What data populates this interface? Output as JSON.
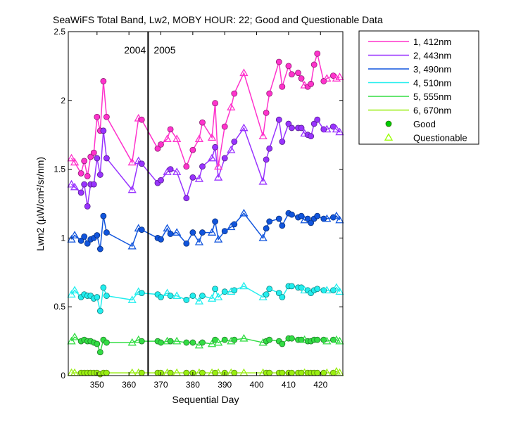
{
  "chart_data": {
    "type": "line",
    "title": "SeaWiFS Total Band, Lw2, MOBY HOUR: 22;  Good and Questionable Data",
    "xlabel": "Sequential Day",
    "ylabel": "Lwn2 (µW/cm²/sr/nm)",
    "xlim": [
      341,
      427
    ],
    "ylim": [
      0,
      2.5
    ],
    "xticks": [
      350,
      360,
      370,
      380,
      390,
      400,
      410,
      420
    ],
    "yticks": [
      0,
      0.5,
      1,
      1.5,
      2,
      2.5
    ],
    "grid": false,
    "legend_position": "outside-right",
    "annotations": [
      {
        "text": "2004",
        "x": 365
      },
      {
        "text": "2005",
        "x": 367
      }
    ],
    "vline_x": 366,
    "x": [
      342,
      343,
      345,
      346,
      347,
      348,
      349,
      350,
      351,
      352,
      353,
      361,
      363,
      364,
      369,
      370,
      372,
      373,
      375,
      378,
      380,
      382,
      383,
      386,
      387,
      388,
      390,
      392,
      393,
      396,
      402,
      403,
      404,
      407,
      408,
      410,
      411,
      413,
      414,
      415,
      416,
      417,
      418,
      419,
      421,
      422,
      424,
      425,
      426
    ],
    "series": [
      {
        "name": "1, 412nm",
        "color": "#ff33cc",
        "values": [
          1.58,
          1.55,
          1.47,
          1.56,
          1.45,
          1.59,
          1.62,
          1.88,
          1.78,
          2.14,
          1.88,
          1.55,
          1.87,
          1.86,
          1.65,
          1.68,
          1.72,
          1.79,
          1.72,
          1.52,
          1.64,
          1.72,
          1.84,
          1.73,
          1.98,
          1.52,
          1.81,
          1.95,
          2.05,
          2.2,
          1.74,
          1.91,
          2.05,
          2.28,
          2.1,
          2.25,
          2.19,
          2.2,
          2.16,
          2.11,
          2.1,
          2.12,
          2.26,
          2.34,
          2.14,
          2.16,
          2.18,
          2.16,
          2.17
        ],
        "quality": [
          "Q",
          "Q",
          "G",
          "G",
          "G",
          "G",
          "G",
          "G",
          "G",
          "G",
          "G",
          "Q",
          "Q",
          "G",
          "G",
          "G",
          "Q",
          "G",
          "Q",
          "G",
          "G",
          "Q",
          "G",
          "Q",
          "G",
          "Q",
          "G",
          "Q",
          "G",
          "Q",
          "Q",
          "G",
          "G",
          "G",
          "G",
          "G",
          "G",
          "G",
          "G",
          "Q",
          "G",
          "G",
          "G",
          "G",
          "G",
          "Q",
          "G",
          "Q",
          "Q"
        ]
      },
      {
        "name": "2, 443nm",
        "color": "#9933ff",
        "values": [
          1.39,
          1.37,
          1.33,
          1.39,
          1.23,
          1.39,
          1.39,
          1.58,
          1.46,
          1.78,
          1.58,
          1.35,
          1.56,
          1.54,
          1.4,
          1.42,
          1.48,
          1.5,
          1.48,
          1.29,
          1.44,
          1.43,
          1.52,
          1.58,
          1.66,
          1.44,
          1.58,
          1.64,
          1.7,
          1.8,
          1.41,
          1.57,
          1.65,
          1.86,
          1.7,
          1.83,
          1.8,
          1.8,
          1.8,
          1.76,
          1.75,
          1.74,
          1.83,
          1.86,
          1.79,
          1.79,
          1.81,
          1.79,
          1.77
        ],
        "quality": [
          "Q",
          "Q",
          "G",
          "G",
          "G",
          "G",
          "G",
          "G",
          "G",
          "G",
          "G",
          "Q",
          "Q",
          "G",
          "G",
          "G",
          "Q",
          "G",
          "Q",
          "G",
          "G",
          "Q",
          "G",
          "Q",
          "G",
          "Q",
          "G",
          "Q",
          "G",
          "Q",
          "Q",
          "G",
          "G",
          "G",
          "G",
          "G",
          "G",
          "G",
          "G",
          "Q",
          "G",
          "G",
          "G",
          "G",
          "G",
          "Q",
          "G",
          "Q",
          "Q"
        ]
      },
      {
        "name": "3, 490nm",
        "color": "#1155dd",
        "values": [
          0.99,
          1.02,
          0.98,
          1.01,
          0.96,
          0.99,
          1.0,
          1.02,
          0.92,
          1.16,
          1.04,
          0.94,
          1.07,
          1.06,
          1.0,
          0.99,
          1.07,
          1.03,
          1.04,
          0.96,
          1.04,
          0.97,
          1.04,
          1.04,
          1.12,
          0.99,
          1.05,
          1.08,
          1.1,
          1.18,
          1.0,
          1.07,
          1.12,
          1.14,
          1.09,
          1.18,
          1.17,
          1.15,
          1.16,
          1.13,
          1.14,
          1.11,
          1.14,
          1.16,
          1.14,
          1.14,
          1.15,
          1.16,
          1.13
        ],
        "quality": [
          "Q",
          "Q",
          "G",
          "G",
          "G",
          "G",
          "G",
          "G",
          "G",
          "G",
          "G",
          "Q",
          "Q",
          "G",
          "G",
          "G",
          "Q",
          "G",
          "Q",
          "G",
          "G",
          "Q",
          "G",
          "Q",
          "G",
          "Q",
          "G",
          "Q",
          "G",
          "Q",
          "Q",
          "G",
          "G",
          "G",
          "G",
          "G",
          "G",
          "G",
          "G",
          "Q",
          "G",
          "G",
          "G",
          "G",
          "G",
          "Q",
          "G",
          "Q",
          "Q"
        ]
      },
      {
        "name": "4, 510nm",
        "color": "#22eeee",
        "values": [
          0.59,
          0.62,
          0.57,
          0.59,
          0.58,
          0.58,
          0.56,
          0.57,
          0.47,
          0.64,
          0.58,
          0.55,
          0.61,
          0.6,
          0.59,
          0.57,
          0.6,
          0.58,
          0.58,
          0.55,
          0.58,
          0.54,
          0.58,
          0.56,
          0.63,
          0.57,
          0.61,
          0.61,
          0.62,
          0.65,
          0.57,
          0.59,
          0.63,
          0.6,
          0.57,
          0.65,
          0.65,
          0.64,
          0.64,
          0.62,
          0.62,
          0.6,
          0.62,
          0.63,
          0.62,
          0.62,
          0.62,
          0.64,
          0.61
        ],
        "quality": [
          "Q",
          "Q",
          "G",
          "G",
          "G",
          "G",
          "G",
          "G",
          "G",
          "G",
          "G",
          "Q",
          "Q",
          "G",
          "G",
          "G",
          "Q",
          "G",
          "Q",
          "G",
          "G",
          "Q",
          "G",
          "Q",
          "G",
          "Q",
          "G",
          "Q",
          "G",
          "Q",
          "Q",
          "G",
          "G",
          "G",
          "G",
          "G",
          "G",
          "G",
          "G",
          "Q",
          "G",
          "G",
          "G",
          "G",
          "G",
          "Q",
          "G",
          "Q",
          "Q"
        ]
      },
      {
        "name": "5, 555nm",
        "color": "#33dd44",
        "values": [
          0.25,
          0.28,
          0.25,
          0.26,
          0.25,
          0.25,
          0.24,
          0.23,
          0.17,
          0.26,
          0.24,
          0.24,
          0.26,
          0.25,
          0.25,
          0.24,
          0.25,
          0.25,
          0.25,
          0.24,
          0.24,
          0.22,
          0.24,
          0.23,
          0.26,
          0.24,
          0.26,
          0.25,
          0.26,
          0.27,
          0.24,
          0.25,
          0.26,
          0.25,
          0.23,
          0.27,
          0.27,
          0.26,
          0.26,
          0.26,
          0.25,
          0.25,
          0.26,
          0.26,
          0.26,
          0.25,
          0.26,
          0.26,
          0.25
        ],
        "quality": [
          "Q",
          "Q",
          "G",
          "G",
          "G",
          "G",
          "G",
          "G",
          "G",
          "G",
          "G",
          "Q",
          "Q",
          "G",
          "G",
          "G",
          "Q",
          "G",
          "Q",
          "G",
          "G",
          "Q",
          "G",
          "Q",
          "G",
          "Q",
          "G",
          "Q",
          "G",
          "Q",
          "Q",
          "G",
          "G",
          "G",
          "G",
          "G",
          "G",
          "G",
          "G",
          "Q",
          "G",
          "G",
          "G",
          "G",
          "G",
          "Q",
          "G",
          "Q",
          "Q"
        ]
      },
      {
        "name": "6, 670nm",
        "color": "#99ee11",
        "values": [
          0.02,
          0.02,
          0.02,
          0.02,
          0.02,
          0.02,
          0.02,
          0.02,
          0.01,
          0.02,
          0.02,
          0.02,
          0.02,
          0.02,
          0.02,
          0.02,
          0.02,
          0.02,
          0.02,
          0.02,
          0.02,
          0.02,
          0.02,
          0.02,
          0.02,
          0.02,
          0.02,
          0.02,
          0.02,
          0.02,
          0.02,
          0.02,
          0.02,
          0.02,
          0.02,
          0.02,
          0.02,
          0.02,
          0.02,
          0.02,
          0.02,
          0.02,
          0.02,
          0.02,
          0.02,
          0.02,
          0.02,
          0.03,
          0.02
        ],
        "quality": [
          "Q",
          "Q",
          "G",
          "G",
          "G",
          "G",
          "G",
          "G",
          "G",
          "G",
          "G",
          "Q",
          "Q",
          "G",
          "G",
          "G",
          "Q",
          "G",
          "Q",
          "G",
          "G",
          "Q",
          "G",
          "Q",
          "G",
          "Q",
          "G",
          "Q",
          "G",
          "Q",
          "Q",
          "G",
          "G",
          "G",
          "G",
          "G",
          "G",
          "G",
          "G",
          "Q",
          "G",
          "G",
          "G",
          "G",
          "G",
          "Q",
          "G",
          "Q",
          "Q"
        ]
      }
    ],
    "marker_legend": [
      {
        "label": "Good",
        "marker": "circle",
        "color": "#00cc00"
      },
      {
        "label": "Questionable",
        "marker": "triangle",
        "color": "#99ff00"
      }
    ]
  }
}
